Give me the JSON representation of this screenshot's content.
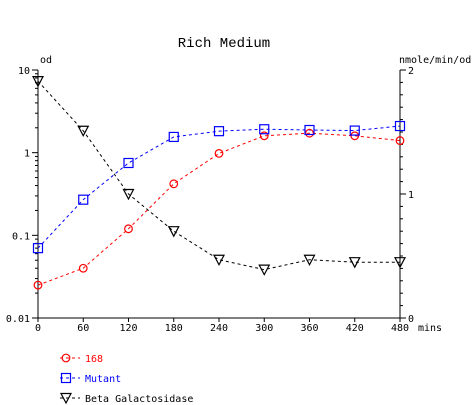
{
  "chart_data": {
    "type": "line",
    "title": "Rich Medium",
    "y_left_label": "od",
    "y_right_label": "nmole/min/od",
    "x_unit_label": "mins",
    "x_ticks": [
      "0",
      "60",
      "120",
      "180",
      "240",
      "300",
      "360",
      "420",
      "480"
    ],
    "y_left_ticks": [
      "10",
      "1",
      "0.1",
      "0.01"
    ],
    "y_right_ticks": [
      "2",
      "1",
      "0"
    ],
    "x": [
      0,
      60,
      120,
      180,
      240,
      300,
      360,
      420,
      480
    ],
    "xlim": [
      0,
      480
    ],
    "y_left_scale": "log",
    "y_left_lim": [
      0.01,
      10
    ],
    "y_right_lim": [
      0,
      2
    ],
    "grid": false,
    "legend_position": "bottom-left",
    "series": [
      {
        "name": "168",
        "axis": "left",
        "marker": "circle",
        "color": "#ff0000",
        "values": [
          0.025,
          0.04,
          0.12,
          0.42,
          0.98,
          1.6,
          1.72,
          1.6,
          1.4
        ]
      },
      {
        "name": "Mutant",
        "axis": "left",
        "marker": "square",
        "color": "#0000ff",
        "values": [
          0.07,
          0.27,
          0.75,
          1.55,
          1.82,
          1.92,
          1.88,
          1.85,
          2.1
        ]
      },
      {
        "name": "Beta Galactosidase",
        "axis": "right",
        "marker": "triangle-down",
        "color": "#000000",
        "values": [
          1.91,
          1.51,
          1.0,
          0.7,
          0.47,
          0.39,
          0.47,
          0.45,
          0.45
        ]
      }
    ]
  }
}
